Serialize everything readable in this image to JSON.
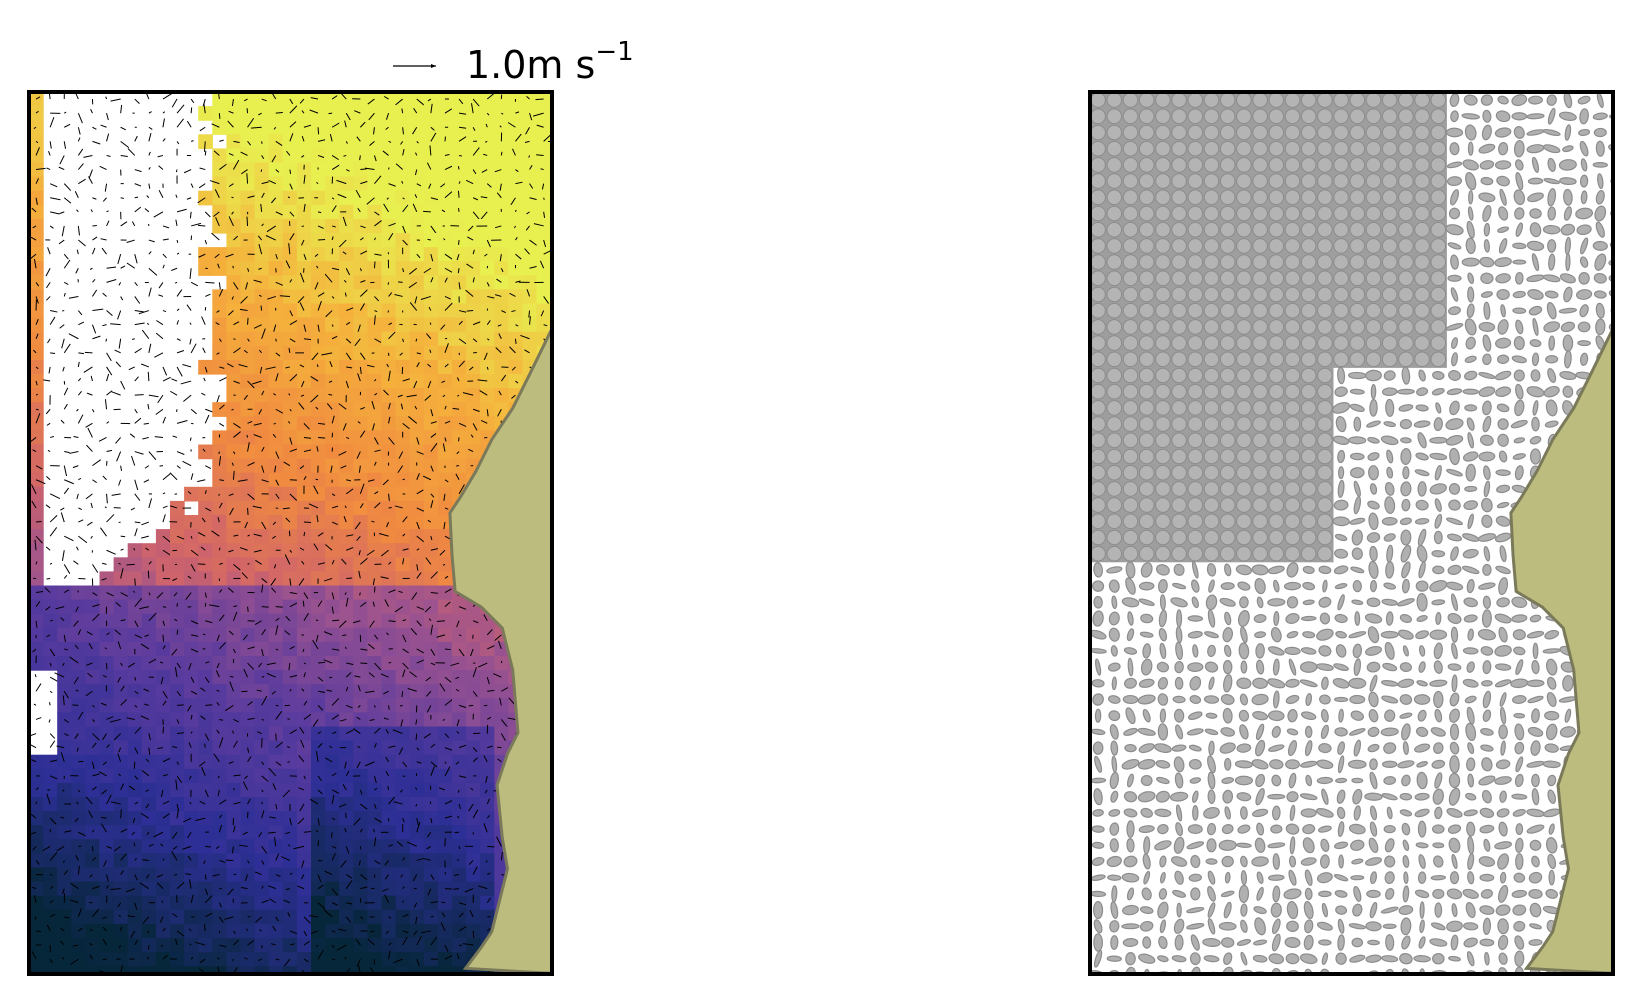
{
  "quiver_key": {
    "label": "1.0m s",
    "exponent": "−1"
  }
}
